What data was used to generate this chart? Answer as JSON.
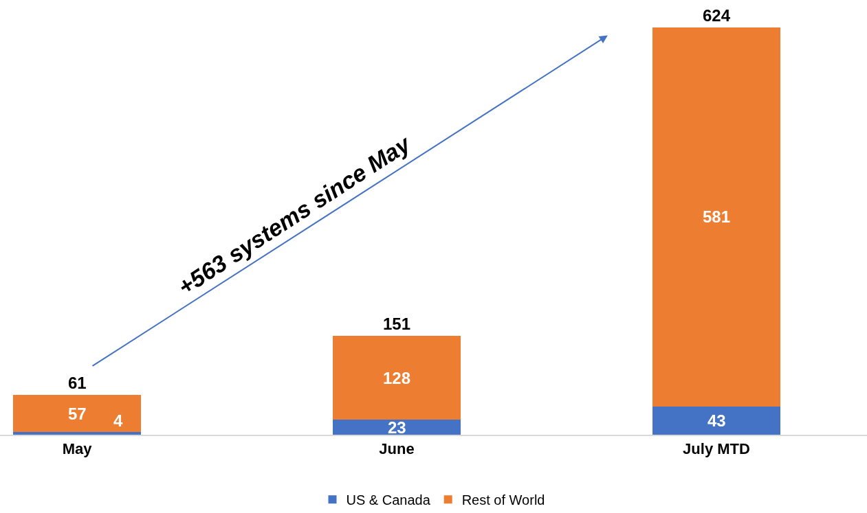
{
  "chart_data": {
    "type": "bar",
    "stacked": true,
    "categories": [
      "May",
      "June",
      "July MTD"
    ],
    "series": [
      {
        "name": "US & Canada",
        "color": "#4472c4",
        "values": [
          4,
          23,
          43
        ]
      },
      {
        "name": "Rest of World",
        "color": "#ed7d31",
        "values": [
          57,
          128,
          581
        ]
      }
    ],
    "data_labels": true,
    "totals": [
      "61",
      "151",
      "624"
    ],
    "annotations": [
      "+563 systems since May"
    ],
    "legend": "bottom"
  }
}
